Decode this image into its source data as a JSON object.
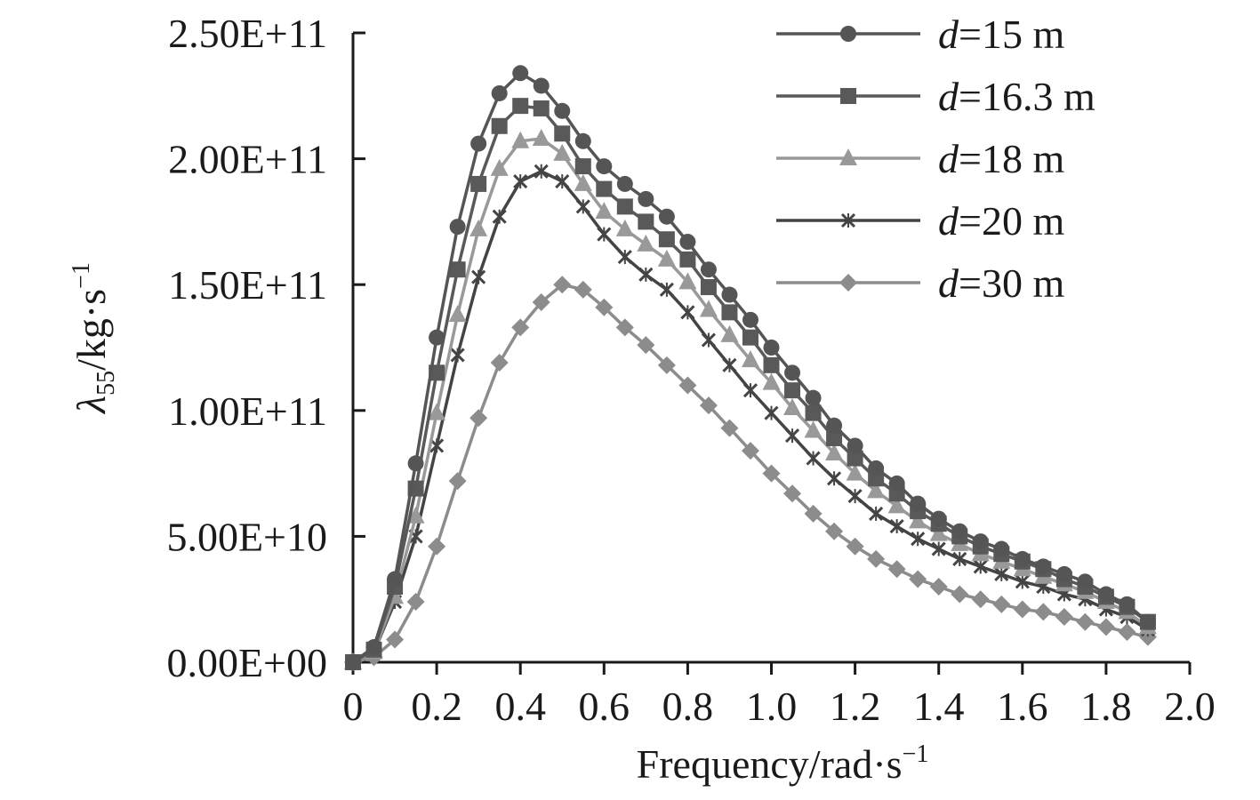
{
  "chart_data": {
    "type": "line",
    "title": "",
    "xlabel": "Frequency/rad·s",
    "xlabel_sup": "−1",
    "ylabel_symbol": "λ",
    "ylabel_sub": "55",
    "ylabel_unit": "/kg·s",
    "ylabel_sup": "−1",
    "xlim": [
      0,
      2.0
    ],
    "ylim": [
      0,
      250000000000
    ],
    "x_ticks": [
      "0",
      "0.2",
      "0.4",
      "0.6",
      "0.8",
      "1.0",
      "1.2",
      "1.4",
      "1.6",
      "1.8",
      "2.0"
    ],
    "x_tick_values": [
      0,
      0.2,
      0.4,
      0.6,
      0.8,
      1.0,
      1.2,
      1.4,
      1.6,
      1.8,
      2.0
    ],
    "y_ticks": [
      "0.00E+00",
      "5.00E+10",
      "1.00E+11",
      "1.50E+11",
      "2.00E+11",
      "2.50E+11"
    ],
    "y_tick_values": [
      0,
      50000000000,
      100000000000,
      150000000000,
      200000000000,
      250000000000
    ],
    "legend_position": "top-right",
    "grid": false,
    "x": [
      0,
      0.05,
      0.1,
      0.15,
      0.2,
      0.25,
      0.3,
      0.35,
      0.4,
      0.45,
      0.5,
      0.55,
      0.6,
      0.65,
      0.7,
      0.75,
      0.8,
      0.85,
      0.9,
      0.95,
      1.0,
      1.05,
      1.1,
      1.15,
      1.2,
      1.25,
      1.3,
      1.35,
      1.4,
      1.45,
      1.5,
      1.55,
      1.6,
      1.65,
      1.7,
      1.75,
      1.8,
      1.85,
      1.9
    ],
    "series": [
      {
        "name": "d=15 m",
        "label_italic": "d",
        "label_rest": "=15 m",
        "marker": "circle",
        "color": "#555555",
        "values": [
          0,
          6000000000,
          33000000000,
          79000000000,
          129000000000,
          173000000000,
          206000000000,
          226000000000,
          234000000000,
          229000000000,
          219000000000,
          207000000000,
          197000000000,
          190000000000,
          184000000000,
          177000000000,
          167000000000,
          156000000000,
          146000000000,
          136000000000,
          125000000000,
          115000000000,
          105000000000,
          94000000000,
          86000000000,
          77000000000,
          71000000000,
          63000000000,
          57000000000,
          52000000000,
          48000000000,
          45000000000,
          41000000000,
          38000000000,
          35000000000,
          32000000000,
          27000000000,
          23000000000,
          16000000000
        ]
      },
      {
        "name": "d=16.3 m",
        "label_italic": "d",
        "label_rest": "=16.3 m",
        "marker": "square",
        "color": "#595959",
        "values": [
          0,
          5000000000,
          30000000000,
          69000000000,
          115000000000,
          156000000000,
          190000000000,
          213000000000,
          221000000000,
          220000000000,
          210000000000,
          197000000000,
          188000000000,
          181000000000,
          175000000000,
          168000000000,
          160000000000,
          149000000000,
          139000000000,
          129000000000,
          118000000000,
          108000000000,
          99000000000,
          89000000000,
          81000000000,
          73000000000,
          67000000000,
          60000000000,
          55000000000,
          50000000000,
          46000000000,
          43000000000,
          40000000000,
          37000000000,
          33000000000,
          30000000000,
          26000000000,
          22000000000,
          16000000000
        ]
      },
      {
        "name": "d=18 m",
        "label_italic": "d",
        "label_rest": "=18 m",
        "marker": "triangle",
        "color": "#999999",
        "values": [
          0,
          4000000000,
          26000000000,
          58000000000,
          99000000000,
          138000000000,
          172000000000,
          196000000000,
          207000000000,
          208000000000,
          202000000000,
          190000000000,
          179000000000,
          172000000000,
          166000000000,
          160000000000,
          151000000000,
          140000000000,
          130000000000,
          120000000000,
          111000000000,
          101000000000,
          92000000000,
          83000000000,
          75000000000,
          68000000000,
          62000000000,
          56000000000,
          51000000000,
          47000000000,
          43000000000,
          40000000000,
          37000000000,
          34000000000,
          31000000000,
          28000000000,
          24000000000,
          20000000000,
          14000000000
        ]
      },
      {
        "name": "d=20 m",
        "label_italic": "d",
        "label_rest": "=20 m",
        "marker": "x",
        "color": "#444444",
        "values": [
          0,
          4000000000,
          24000000000,
          50000000000,
          86000000000,
          122000000000,
          153000000000,
          177000000000,
          191000000000,
          195000000000,
          191000000000,
          181000000000,
          170000000000,
          161000000000,
          154000000000,
          148000000000,
          139000000000,
          128000000000,
          118000000000,
          108000000000,
          99000000000,
          90000000000,
          81000000000,
          73000000000,
          66000000000,
          59000000000,
          54000000000,
          49000000000,
          45000000000,
          41000000000,
          38000000000,
          35000000000,
          32000000000,
          30000000000,
          27000000000,
          25000000000,
          21000000000,
          18000000000,
          13000000000
        ]
      },
      {
        "name": "d=30 m",
        "label_italic": "d",
        "label_rest": "=30 m",
        "marker": "diamond",
        "color": "#8c8c8c",
        "values": [
          0,
          2000000000,
          9000000000,
          24000000000,
          46000000000,
          72000000000,
          97000000000,
          119000000000,
          133000000000,
          143000000000,
          150000000000,
          148000000000,
          141000000000,
          133000000000,
          126000000000,
          118000000000,
          110000000000,
          102000000000,
          93000000000,
          84000000000,
          75000000000,
          67000000000,
          59000000000,
          52000000000,
          46000000000,
          41000000000,
          37000000000,
          33000000000,
          30000000000,
          27000000000,
          25000000000,
          23000000000,
          21000000000,
          20000000000,
          18000000000,
          16000000000,
          14000000000,
          12000000000,
          10000000000
        ]
      }
    ]
  }
}
